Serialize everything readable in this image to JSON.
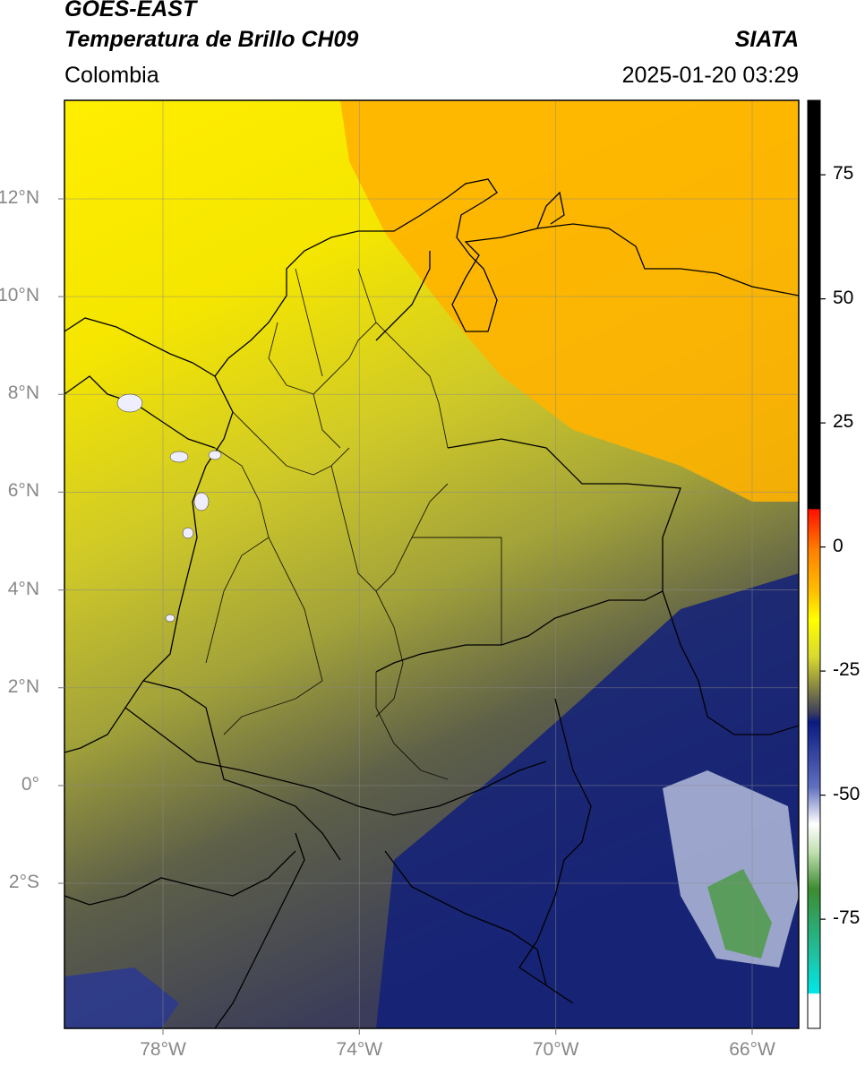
{
  "header": {
    "title_line1": "GOES-EAST",
    "title_line2": "Temperatura de Brillo CH09",
    "region": "Colombia",
    "organization": "SIATA",
    "datetime": "2025-01-20 03:29"
  },
  "map": {
    "lat_labels": [
      {
        "lat": 12,
        "label": "12°N"
      },
      {
        "lat": 10,
        "label": "10°N"
      },
      {
        "lat": 8,
        "label": "8°N"
      },
      {
        "lat": 6,
        "label": "6°N"
      },
      {
        "lat": 4,
        "label": "4°N"
      },
      {
        "lat": 2,
        "label": "2°N"
      },
      {
        "lat": 0,
        "label": "0°"
      },
      {
        "lat": -2,
        "label": "2°S"
      }
    ],
    "lon_labels": [
      {
        "lon": -78,
        "label": "78°W"
      },
      {
        "lon": -74,
        "label": "74°W"
      },
      {
        "lon": -70,
        "label": "70°W"
      },
      {
        "lon": -66,
        "label": "66°W"
      }
    ],
    "lon_range": [
      -80,
      -65
    ],
    "lat_range": [
      -5,
      14
    ],
    "gridlines": true
  },
  "colorbar": {
    "ticks": [
      {
        "value": 75,
        "label": "75"
      },
      {
        "value": 50,
        "label": "50"
      },
      {
        "value": 25,
        "label": "25"
      },
      {
        "value": 0,
        "label": "0"
      },
      {
        "value": -25,
        "label": "-25"
      },
      {
        "value": -50,
        "label": "-50"
      },
      {
        "value": -75,
        "label": "-75"
      }
    ],
    "range": [
      -97,
      90
    ],
    "colors": {
      "black": "#000000",
      "red": "#ff1000",
      "orange": "#ffa500",
      "yellow": "#ffff00",
      "olive": "#b8b830",
      "gray_blue": "#3a3c5a",
      "navy": "#0a1a80",
      "white": "#ffffff",
      "green": "#3c8c30",
      "cyan": "#00e0e0"
    }
  }
}
